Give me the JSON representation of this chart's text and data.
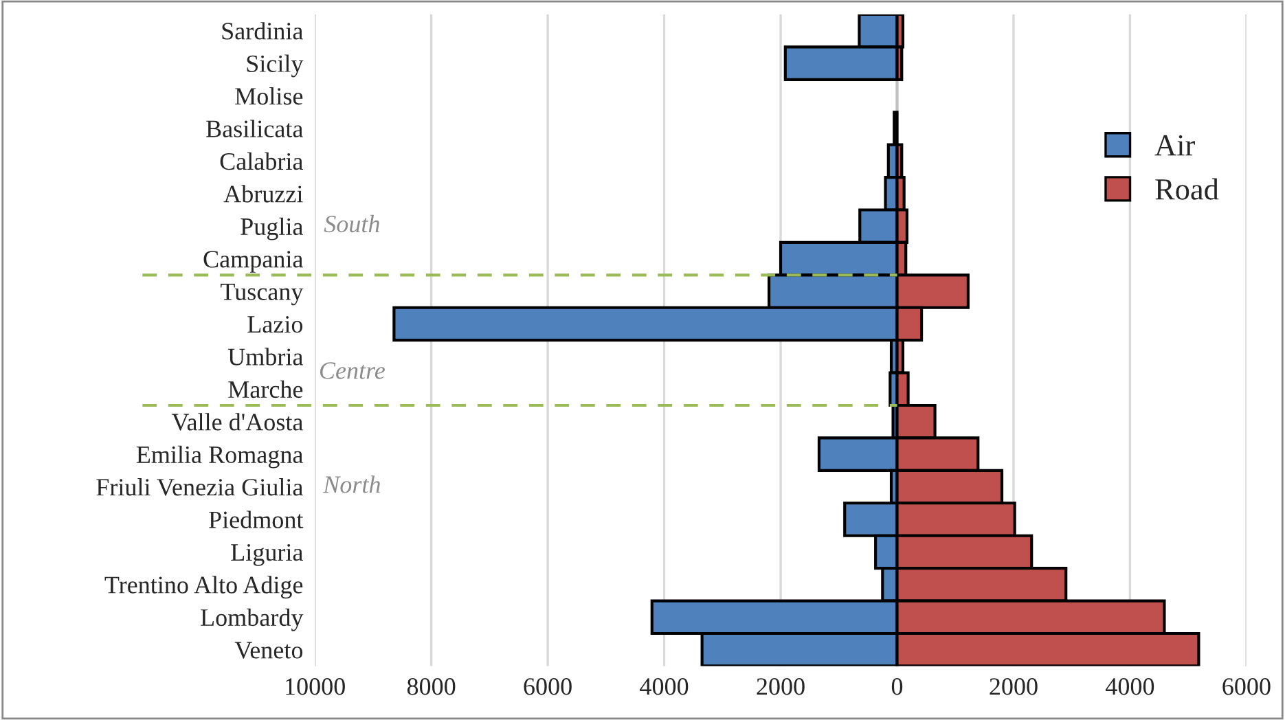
{
  "chart_data": {
    "type": "bar",
    "orientation": "horizontal",
    "categories": [
      "Sardinia",
      "Sicily",
      "Molise",
      "Basilicata",
      "Calabria",
      "Abruzzi",
      "Puglia",
      "Campania",
      "Tuscany",
      "Lazio",
      "Umbria",
      "Marche",
      "Valle d'Aosta",
      "Emilia Romagna",
      "Friuli Venezia Giulia",
      "Piedmont",
      "Liguria",
      "Trentino Alto Adige",
      "Lombardy",
      "Veneto"
    ],
    "series": [
      {
        "name": "Air",
        "color": "#4f81bd",
        "values": [
          -650,
          -1920,
          null,
          -50,
          -150,
          -200,
          -640,
          -2000,
          -2200,
          -8640,
          -100,
          -120,
          -70,
          -1340,
          -100,
          -900,
          -370,
          -250,
          -4210,
          -3350
        ]
      },
      {
        "name": "Road",
        "color": "#c0504d",
        "values": [
          100,
          80,
          null,
          null,
          80,
          120,
          170,
          150,
          1220,
          420,
          100,
          190,
          650,
          1390,
          1800,
          2020,
          2310,
          2900,
          4590,
          5180
        ]
      }
    ],
    "xlim": [
      -10000,
      6000
    ],
    "xticks": [
      {
        "value": -10000,
        "label": "10000"
      },
      {
        "value": -8000,
        "label": "8000"
      },
      {
        "value": -6000,
        "label": "6000"
      },
      {
        "value": -4000,
        "label": "4000"
      },
      {
        "value": -2000,
        "label": "2000"
      },
      0,
      2000,
      4000,
      6000
    ],
    "annotations": [
      "South",
      "Centre",
      "North"
    ],
    "stacked": true,
    "grid": "x",
    "legend": "top right"
  }
}
